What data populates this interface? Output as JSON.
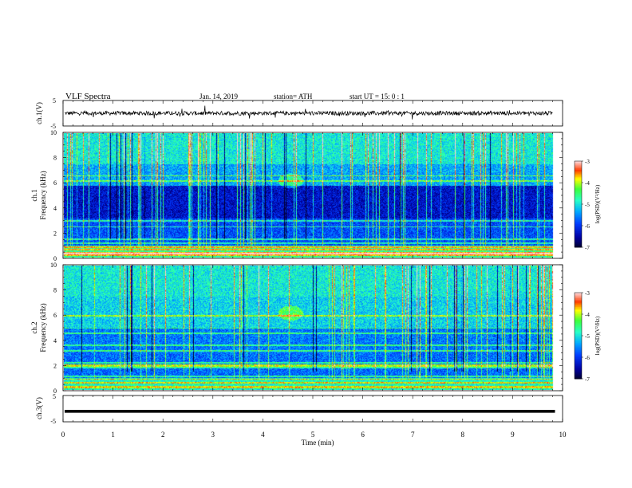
{
  "header": {
    "title": "VLF  Spectra",
    "date": "Jan. 14, 2019",
    "station": "station= ATH",
    "start": "start  UT  =    15: 0   : 1"
  },
  "chart_data": [
    {
      "type": "line",
      "ylabel": "ch.1(V)",
      "ylim": [
        -5,
        5
      ],
      "yticks": [
        "5",
        "-5"
      ],
      "x_range": [
        0,
        10
      ],
      "series": [
        {
          "mean": 0,
          "note_visible": "noisy trace near 0 V spanning 0–9.8 min"
        }
      ]
    },
    {
      "type": "heatmap",
      "ylabel": "Frequency (kHz)",
      "channel_label": "ch.1",
      "ylim": [
        0,
        10
      ],
      "yticks": [
        "0",
        "2",
        "4",
        "6",
        "8",
        "10"
      ],
      "x_range": [
        0,
        10
      ],
      "data_end_min": 9.8,
      "colorbar": {
        "label": "log(PSD)(V²/Hz)",
        "ticks": [
          "-3",
          "-4",
          "-5",
          "-6",
          "-7"
        ],
        "range": [
          -7,
          -3
        ]
      }
    },
    {
      "type": "heatmap",
      "ylabel": "Frequency (kHz)",
      "channel_label": "ch.2",
      "ylim": [
        0,
        10
      ],
      "yticks": [
        "0",
        "2",
        "4",
        "6",
        "8",
        "10"
      ],
      "x_range": [
        0,
        10
      ],
      "data_end_min": 9.8,
      "colorbar": {
        "label": "log(PSD)(V²/Hz)",
        "ticks": [
          "-3",
          "-4",
          "-5",
          "-6",
          "-7"
        ],
        "range": [
          -7,
          -3
        ]
      }
    },
    {
      "type": "line",
      "ylabel": "ch.3(V)",
      "ylim": [
        -5,
        5
      ],
      "yticks": [
        "5",
        "-5"
      ],
      "x_range": [
        0,
        10
      ],
      "series": [
        {
          "mean": -1,
          "note_visible": "flat thick trace slightly below 0 V"
        }
      ]
    }
  ],
  "xaxis": {
    "label": "Time  (min)",
    "ticks": [
      "0",
      "1",
      "2",
      "3",
      "4",
      "5",
      "6",
      "7",
      "8",
      "9",
      "10"
    ]
  },
  "colors": {
    "low": "#000040",
    "mid": "#1565ff",
    "high": "#33ff66",
    "max": "#ff2020"
  }
}
